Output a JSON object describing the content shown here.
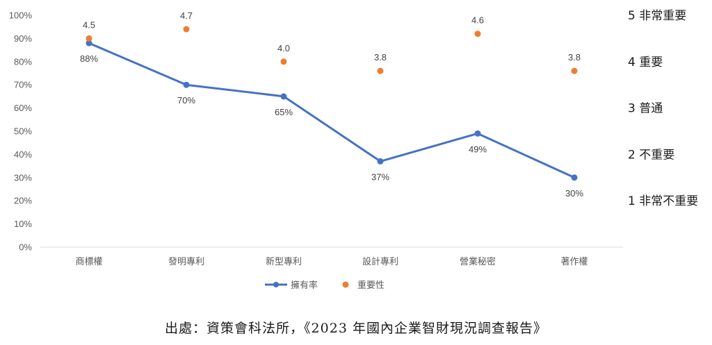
{
  "chart_data": {
    "type": "line",
    "categories": [
      "商標權",
      "發明專利",
      "新型專利",
      "設計專利",
      "營業秘密",
      "著作權"
    ],
    "series": [
      {
        "name": "擁有率",
        "type": "line",
        "axis": "left",
        "color": "#4472C4",
        "values": [
          88,
          70,
          65,
          37,
          49,
          30
        ],
        "labels": [
          "88%",
          "70%",
          "65%",
          "37%",
          "49%",
          "30%"
        ]
      },
      {
        "name": "重要性",
        "type": "scatter",
        "axis": "right",
        "color": "#ED7D31",
        "values": [
          4.5,
          4.7,
          4.0,
          3.8,
          4.6,
          3.8
        ],
        "labels": [
          "4.5",
          "4.7",
          "4.0",
          "3.8",
          "4.6",
          "3.8"
        ]
      }
    ],
    "left_axis": {
      "ylim": [
        0,
        100
      ],
      "ticks": [
        "0%",
        "10%",
        "20%",
        "30%",
        "40%",
        "50%",
        "60%",
        "70%",
        "80%",
        "90%",
        "100%"
      ]
    },
    "right_axis": {
      "ylim": [
        0,
        5
      ],
      "ticks": [
        {
          "value": 1,
          "label": "1 非常不重要"
        },
        {
          "value": 2,
          "label": "2 不重要"
        },
        {
          "value": 3,
          "label": "3 普通"
        },
        {
          "value": 4,
          "label": "4 重要"
        },
        {
          "value": 5,
          "label": "5 非常重要"
        }
      ]
    },
    "legend_position": "bottom",
    "grid": false
  },
  "caption": "出處：資策會科法所，《2023 年國內企業智財現況調查報告》"
}
